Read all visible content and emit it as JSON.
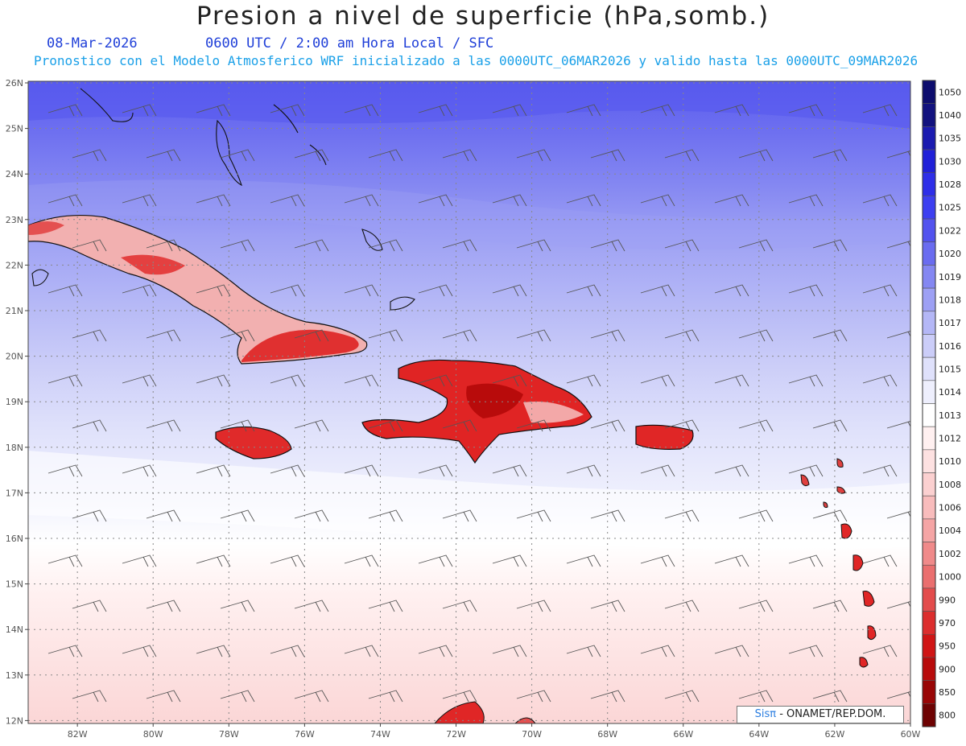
{
  "title": "Presion a nivel de superficie (hPa,somb.)",
  "date": "08-Mar-2026",
  "time_line": "0600 UTC / 2:00 am Hora Local / SFC",
  "forecast_line": "Pronostico con el Modelo Atmosferico WRF inicializado a las 0000UTC_06MAR2026 y valido hasta las  0000UTC_09MAR2026",
  "lat_labels": [
    "26N",
    "25N",
    "24N",
    "23N",
    "22N",
    "21N",
    "20N",
    "19N",
    "18N",
    "17N",
    "16N",
    "15N",
    "14N",
    "13N",
    "12N"
  ],
  "lon_labels": [
    "82W",
    "80W",
    "78W",
    "76W",
    "74W",
    "72W",
    "70W",
    "68W",
    "66W",
    "64W",
    "62W",
    "60W"
  ],
  "colorbar": {
    "levels": [
      "1050",
      "1040",
      "1035",
      "1030",
      "1028",
      "1025",
      "1022",
      "1020",
      "1019",
      "1018",
      "1017",
      "1016",
      "1015",
      "1014",
      "1013",
      "1012",
      "1010",
      "1008",
      "1006",
      "1004",
      "1002",
      "1000",
      "990",
      "970",
      "950",
      "900",
      "850",
      "800"
    ],
    "colors": [
      "#0d0d6e",
      "#12127f",
      "#1b1bb0",
      "#2020d8",
      "#2e2ee8",
      "#3d3ff0",
      "#5252ee",
      "#6a6cf0",
      "#8487f2",
      "#9da0f4",
      "#b4b7f6",
      "#cbcdf8",
      "#dfe1fb",
      "#eeeffd",
      "#ffffff",
      "#fff0f0",
      "#fde1e1",
      "#fbd0d0",
      "#f8bcbc",
      "#f5a5a5",
      "#f08a8a",
      "#ea6f6f",
      "#e34c4c",
      "#dc2e2e",
      "#d01515",
      "#b80b0b",
      "#990606",
      "#6e0202"
    ]
  },
  "credit": {
    "sis": "Sisπ",
    "rest": " - ONAMET/REP.DOM."
  }
}
